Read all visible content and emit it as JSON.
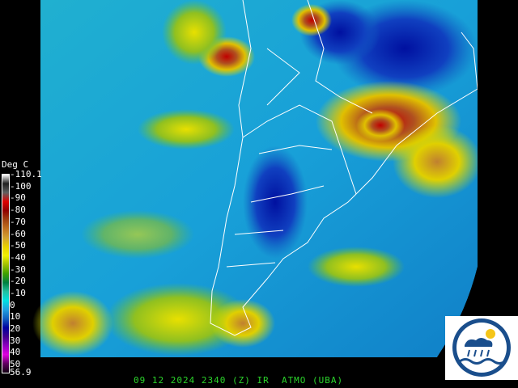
{
  "legend": {
    "title": "Deg C",
    "ticks": [
      "-110.1",
      "-100",
      "-90",
      "-80",
      "-70",
      "-60",
      "-50",
      "-40",
      "-30",
      "-20",
      "-10",
      "0",
      "10",
      "20",
      "30",
      "40",
      "50",
      "56.9"
    ],
    "colors": [
      "#ffffff",
      "#202020",
      "#606060",
      "#e00000",
      "#900000",
      "#a04010",
      "#c07020",
      "#d0a030",
      "#e8d000",
      "#f0f000",
      "#a0c000",
      "#40a000",
      "#008040",
      "#20c0a0",
      "#00e0e0",
      "#20a0e0",
      "#1060c0",
      "#0000a0",
      "#400090",
      "#9000c0",
      "#e000e0",
      "#600060",
      "#100010"
    ]
  },
  "footer": {
    "caption": "09 12 2024 2340 (Z) IR  ATMO (UBA)"
  },
  "logo": {
    "text": "ATMO UBA"
  },
  "map": {
    "region": "South America",
    "boundaries_color": "#ffffff"
  }
}
